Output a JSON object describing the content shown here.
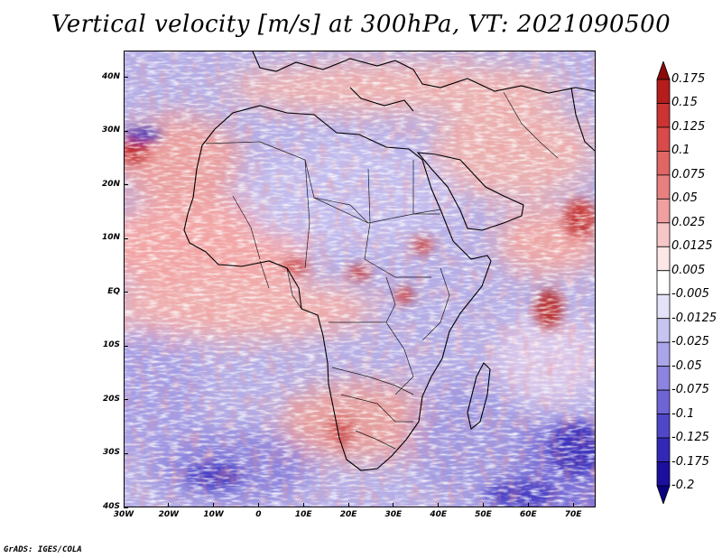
{
  "title": "Vertical velocity [m/s] at 300hPa, VT: 2021090500",
  "credit": "GrADS: IGES/COLA",
  "map": {
    "projection": "lat-lon",
    "lon_range": [
      -30,
      75
    ],
    "lat_range": [
      -40,
      45
    ],
    "lon_ticks": [
      "30W",
      "20W",
      "10W",
      "0",
      "10E",
      "20E",
      "30E",
      "40E",
      "50E",
      "60E",
      "70E"
    ],
    "lon_values": [
      -30,
      -20,
      -10,
      0,
      10,
      20,
      30,
      40,
      50,
      60,
      70
    ],
    "lat_ticks": [
      "40N",
      "30N",
      "20N",
      "10N",
      "EQ",
      "10S",
      "20S",
      "30S",
      "40S"
    ],
    "lat_values": [
      40,
      30,
      20,
      10,
      0,
      -10,
      -20,
      -30,
      -40
    ],
    "field": "vertical velocity",
    "units": "m/s",
    "level": "300hPa",
    "valid_time": "2021090500"
  },
  "colorbar": {
    "labels": [
      "0.175",
      "0.15",
      "0.125",
      "0.1",
      "0.075",
      "0.05",
      "0.025",
      "0.0125",
      "0.005",
      "-0.005",
      "-0.0125",
      "-0.025",
      "-0.05",
      "-0.075",
      "-0.1",
      "-0.125",
      "-0.175",
      "-0.2"
    ],
    "colors": [
      "#8c0a0a",
      "#b51c1c",
      "#cc3333",
      "#d94a4a",
      "#e06666",
      "#e88080",
      "#f0a0a0",
      "#f7c6c6",
      "#fde6e6",
      "#ffffff",
      "#e4e2f8",
      "#c8c4f0",
      "#aaa4e8",
      "#8c84de",
      "#6e64d4",
      "#5046c8",
      "#3328b6",
      "#1c0f9e",
      "#0a0080"
    ]
  }
}
